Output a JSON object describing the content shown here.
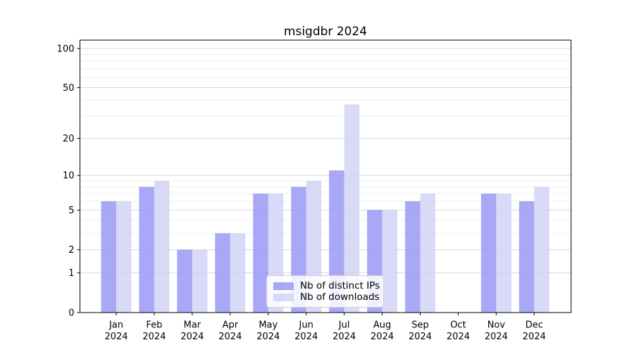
{
  "title": "msigdbr 2024",
  "chart_data": {
    "type": "bar",
    "title": "msigdbr 2024",
    "y_scale": "log1p",
    "year": "2024",
    "categories": [
      "Jan",
      "Feb",
      "Mar",
      "Apr",
      "May",
      "Jun",
      "Jul",
      "Aug",
      "Sep",
      "Oct",
      "Nov",
      "Dec"
    ],
    "series": [
      {
        "name": "Nb of distinct IPs",
        "color": "#9292f4",
        "opacity": 0.8,
        "values": [
          6,
          8,
          2,
          3,
          7,
          8,
          11,
          5,
          6,
          0,
          7,
          6
        ]
      },
      {
        "name": "Nb of downloads",
        "color": "#d0d0f6",
        "opacity": 0.8,
        "values": [
          6,
          9,
          2,
          3,
          7,
          9,
          37,
          5,
          7,
          0,
          7,
          8
        ]
      }
    ],
    "ylim": [
      0,
      116
    ],
    "yticks": [
      0,
      1,
      2,
      5,
      10,
      20,
      50,
      100
    ],
    "minor_yticks": [
      3,
      4,
      6,
      7,
      8,
      9,
      30,
      40,
      60,
      70,
      80,
      90
    ],
    "grid": true,
    "legend_position": "lower center",
    "colors": {
      "major_grid": "#d9d9d9",
      "minor_grid": "#efefef",
      "axis": "#000000",
      "text": "#000000",
      "background": "#ffffff"
    }
  }
}
